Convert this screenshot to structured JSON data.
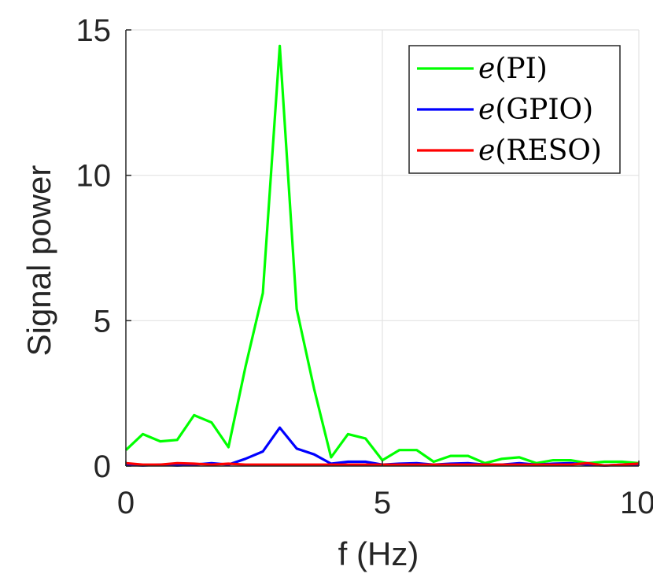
{
  "chart_data": {
    "type": "line",
    "xlabel": "f (Hz)",
    "ylabel": "Signal power",
    "xlim": [
      0,
      10
    ],
    "ylim": [
      0,
      15
    ],
    "xticks": [
      0,
      5,
      10
    ],
    "xtick_labels": [
      "0",
      "5",
      "10"
    ],
    "yticks": [
      0,
      5,
      10,
      15
    ],
    "ytick_labels": [
      "0",
      "5",
      "10",
      "15"
    ],
    "grid": true,
    "legend_position": "top-right",
    "series": [
      {
        "name": "e(PI)",
        "legend_italic": "e",
        "legend_rest": "(PI)",
        "color": "#00ff00",
        "x": [
          0,
          0.33,
          0.67,
          1.0,
          1.33,
          1.67,
          2.0,
          2.33,
          2.67,
          3.0,
          3.33,
          3.67,
          4.0,
          4.33,
          4.67,
          5.0,
          5.33,
          5.67,
          6.0,
          6.33,
          6.67,
          7.0,
          7.33,
          7.67,
          8.0,
          8.33,
          8.67,
          9.0,
          9.33,
          9.67,
          10.0
        ],
        "y": [
          0.55,
          1.1,
          0.85,
          0.9,
          1.75,
          1.5,
          0.65,
          3.4,
          5.95,
          14.45,
          5.4,
          2.65,
          0.3,
          1.1,
          0.95,
          0.2,
          0.55,
          0.55,
          0.15,
          0.35,
          0.35,
          0.1,
          0.25,
          0.3,
          0.1,
          0.2,
          0.2,
          0.1,
          0.15,
          0.15,
          0.1
        ]
      },
      {
        "name": "e(GPIO)",
        "legend_italic": "e",
        "legend_rest": "(GPIO)",
        "color": "#0000ff",
        "x": [
          0,
          0.33,
          0.67,
          1.0,
          1.33,
          1.67,
          2.0,
          2.33,
          2.67,
          3.0,
          3.33,
          3.67,
          4.0,
          4.33,
          4.67,
          5.0,
          5.33,
          5.67,
          6.0,
          6.33,
          6.67,
          7.0,
          7.33,
          7.67,
          8.0,
          8.33,
          8.67,
          9.0,
          9.33,
          9.67,
          10.0
        ],
        "y": [
          0.05,
          0.02,
          0.05,
          0.02,
          0.05,
          0.1,
          0.05,
          0.25,
          0.5,
          1.32,
          0.6,
          0.4,
          0.08,
          0.15,
          0.15,
          0.05,
          0.08,
          0.1,
          0.05,
          0.08,
          0.1,
          0.05,
          0.05,
          0.1,
          0.05,
          0.08,
          0.1,
          0.05,
          0.02,
          0.05,
          0.03
        ]
      },
      {
        "name": "e(RESO)",
        "legend_italic": "e",
        "legend_rest": "(RESO)",
        "color": "#ff0000",
        "x": [
          0,
          0.33,
          0.67,
          1.0,
          1.33,
          1.67,
          2.0,
          2.33,
          2.67,
          3.0,
          3.33,
          3.67,
          4.0,
          4.33,
          4.67,
          5.0,
          5.33,
          5.67,
          6.0,
          6.33,
          6.67,
          7.0,
          7.33,
          7.67,
          8.0,
          8.33,
          8.67,
          9.0,
          9.33,
          9.67,
          10.0
        ],
        "y": [
          0.1,
          0.05,
          0.05,
          0.1,
          0.08,
          0.05,
          0.08,
          0.05,
          0.05,
          0.05,
          0.05,
          0.05,
          0.05,
          0.05,
          0.05,
          0.05,
          0.05,
          0.05,
          0.05,
          0.05,
          0.05,
          0.05,
          0.05,
          0.05,
          0.05,
          0.05,
          0.05,
          0.1,
          0.02,
          0.05,
          0.08
        ]
      }
    ]
  }
}
